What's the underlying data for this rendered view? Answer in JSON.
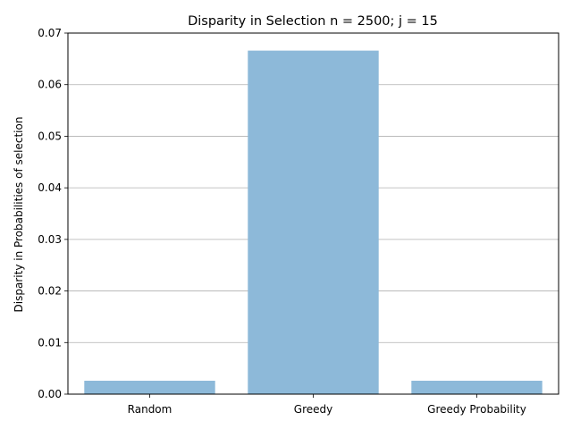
{
  "chart_data": {
    "type": "bar",
    "title": "Disparity in Selection n = 2500; j = 15",
    "xlabel": "",
    "ylabel": "Disparity in Probabilities of selection",
    "categories": [
      "Random",
      "Greedy",
      "Greedy Probability"
    ],
    "values": [
      0.0026,
      0.0666,
      0.0026
    ],
    "ylim": [
      0,
      0.07
    ],
    "yticks": [
      "0.00",
      "0.01",
      "0.02",
      "0.03",
      "0.04",
      "0.05",
      "0.06",
      "0.07"
    ],
    "grid": "y",
    "bar_color": "#8db9d9"
  }
}
